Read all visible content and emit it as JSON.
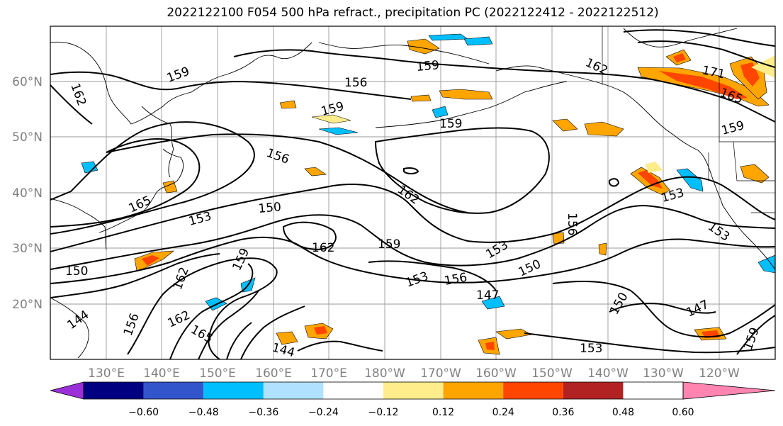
{
  "title": "2022122100 F054 500 hPa refract., precipitation PC (2022122412 - 2022122512)",
  "lat_labels": [
    "60°N",
    "50°N",
    "40°N",
    "30°N",
    "20°N"
  ],
  "lon_labels": [
    "130°E",
    "140°E",
    "150°E",
    "160°E",
    "170°E",
    "180°W",
    "170°W",
    "160°W",
    "150°W",
    "140°W",
    "130°W",
    "120°W"
  ],
  "contour_labels": [
    "159",
    "156",
    "159",
    "162",
    "159",
    "171",
    "165",
    "159",
    "159",
    "156",
    "162",
    "162",
    "165",
    "153",
    "150",
    "150",
    "153",
    "156",
    "162",
    "159",
    "153",
    "150",
    "153",
    "156",
    "147",
    "150",
    "147",
    "153",
    "159",
    "162",
    "162",
    "165",
    "144",
    "156",
    "144",
    "153",
    "159"
  ],
  "colorbar": {
    "ticks": [
      "−0.60",
      "−0.48",
      "−0.36",
      "−0.24",
      "−0.12",
      "0.12",
      "0.24",
      "0.36",
      "0.48",
      "0.60"
    ],
    "colors": [
      "#9b30d9",
      "#000080",
      "#3355cc",
      "#00bfff",
      "#b0e2ff",
      "#ffffff",
      "#ffec8b",
      "#ffa500",
      "#ff4500",
      "#b22222",
      "#ff85b0"
    ]
  }
}
